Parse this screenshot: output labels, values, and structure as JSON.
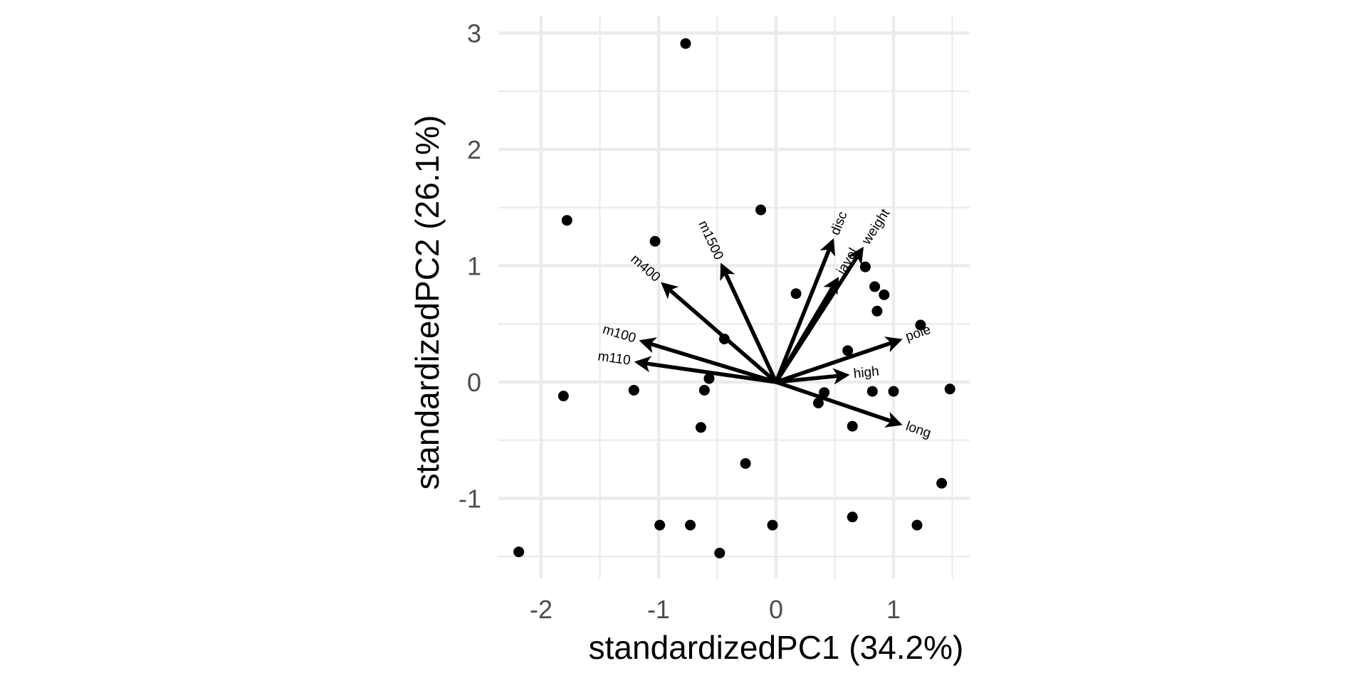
{
  "chart_data": {
    "type": "scatter",
    "xlabel": "standardizedPC1 (34.2%)",
    "ylabel": "standardizedPC2 (26.1%)",
    "xlim": [
      -2.35,
      1.65
    ],
    "ylim": [
      -1.68,
      3.1
    ],
    "x_ticks": [
      -2,
      -1,
      0,
      1
    ],
    "x_tick_labels": [
      "-2",
      "-1",
      "0",
      "1"
    ],
    "y_ticks": [
      -1,
      0,
      1,
      2,
      3
    ],
    "y_tick_labels": [
      "-1",
      "0",
      "1",
      "2",
      "3"
    ],
    "grid": true,
    "grid_color": "#ebebeb",
    "point_color": "#000000",
    "points": [
      {
        "x": -0.77,
        "y": 2.91
      },
      {
        "x": -1.78,
        "y": 1.39
      },
      {
        "x": -0.13,
        "y": 1.48
      },
      {
        "x": -1.03,
        "y": 1.21
      },
      {
        "x": 0.76,
        "y": 0.99
      },
      {
        "x": 0.17,
        "y": 0.76
      },
      {
        "x": 0.84,
        "y": 0.82
      },
      {
        "x": 0.92,
        "y": 0.75
      },
      {
        "x": 0.86,
        "y": 0.61
      },
      {
        "x": 1.23,
        "y": 0.49
      },
      {
        "x": -0.44,
        "y": 0.37
      },
      {
        "x": 0.61,
        "y": 0.27
      },
      {
        "x": -0.57,
        "y": 0.03
      },
      {
        "x": -1.21,
        "y": -0.07
      },
      {
        "x": -0.61,
        "y": -0.07
      },
      {
        "x": 0.41,
        "y": -0.09
      },
      {
        "x": 0.82,
        "y": -0.08
      },
      {
        "x": 1.0,
        "y": -0.08
      },
      {
        "x": 1.48,
        "y": -0.06
      },
      {
        "x": -1.81,
        "y": -0.12
      },
      {
        "x": 0.36,
        "y": -0.18
      },
      {
        "x": -0.64,
        "y": -0.39
      },
      {
        "x": 0.65,
        "y": -0.38
      },
      {
        "x": -0.26,
        "y": -0.7
      },
      {
        "x": 1.41,
        "y": -0.87
      },
      {
        "x": 0.65,
        "y": -1.16
      },
      {
        "x": -0.99,
        "y": -1.23
      },
      {
        "x": -0.73,
        "y": -1.23
      },
      {
        "x": -0.03,
        "y": -1.23
      },
      {
        "x": 1.2,
        "y": -1.23
      },
      {
        "x": -2.19,
        "y": -1.46
      },
      {
        "x": -0.48,
        "y": -1.47
      }
    ],
    "loadings": [
      {
        "name": "m1500",
        "x": -0.46,
        "y": 1.0
      },
      {
        "name": "m400",
        "x": -0.96,
        "y": 0.84
      },
      {
        "name": "m100",
        "x": -1.14,
        "y": 0.35
      },
      {
        "name": "m110",
        "x": -1.18,
        "y": 0.17
      },
      {
        "name": "disc",
        "x": 0.48,
        "y": 1.21
      },
      {
        "name": "javel",
        "x": 0.52,
        "y": 0.88
      },
      {
        "name": "weight",
        "x": 0.73,
        "y": 1.14
      },
      {
        "name": "pole",
        "x": 1.05,
        "y": 0.36
      },
      {
        "name": "high",
        "x": 0.6,
        "y": 0.06
      },
      {
        "name": "long",
        "x": 1.05,
        "y": -0.36
      }
    ]
  }
}
